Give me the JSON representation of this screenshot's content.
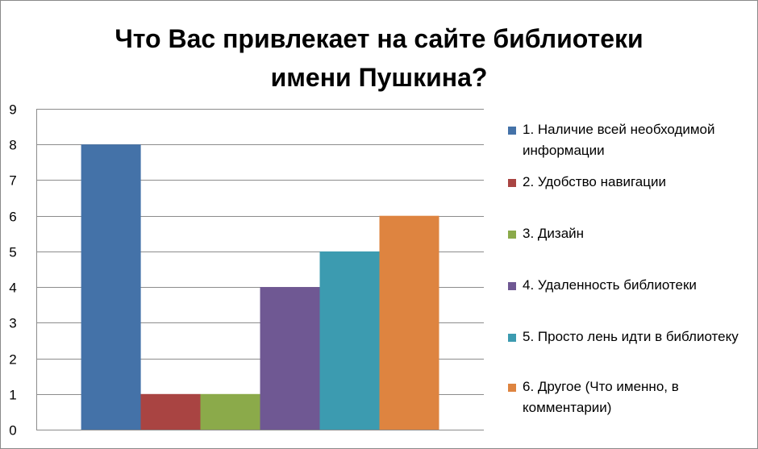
{
  "chart_data": {
    "type": "bar",
    "title": "Что Вас привлекает на сайте библиотеки\nимени Пушкина?",
    "ylim": [
      0,
      9
    ],
    "yticks": [
      0,
      1,
      2,
      3,
      4,
      5,
      6,
      7,
      8,
      9
    ],
    "grid": true,
    "legend_position": "right",
    "series": [
      {
        "name": "1. Наличие всей необходимой информации",
        "value": 8,
        "color": "#4472A8"
      },
      {
        "name": "2.  Удобство навигации",
        "value": 1,
        "color": "#A94442"
      },
      {
        "name": "3.  Дизайн",
        "value": 1,
        "color": "#8BAA4A"
      },
      {
        "name": "4.  Удаленность библиотеки",
        "value": 4,
        "color": "#6F5893"
      },
      {
        "name": "5.  Просто лень идти в библиотеку",
        "value": 5,
        "color": "#3C9BB0"
      },
      {
        "name": "6. Другое (Что именно, в комментарии)",
        "value": 6,
        "color": "#DE8440"
      }
    ]
  }
}
